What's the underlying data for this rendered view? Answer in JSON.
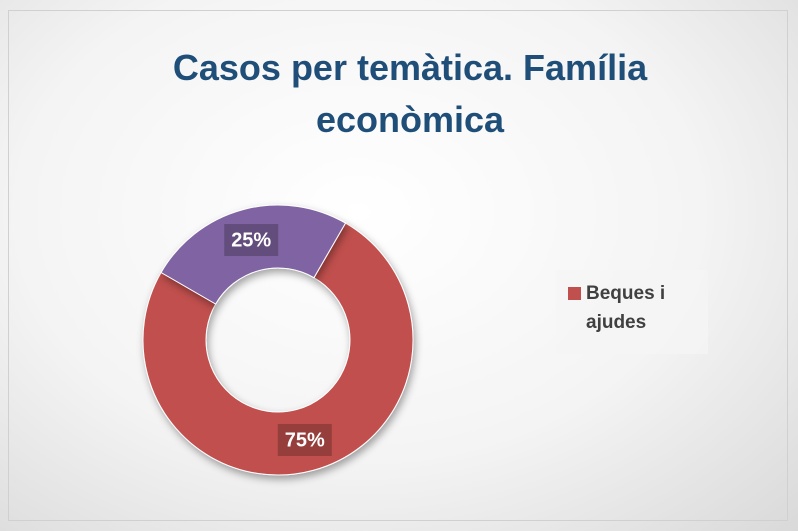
{
  "chart_data": {
    "type": "donut",
    "title": "Casos per temàtica. Família econòmica",
    "categories": [
      "Beques i ajudes",
      null
    ],
    "values": [
      75,
      25
    ],
    "value_labels": [
      "75%",
      "25%"
    ],
    "colors": [
      "#c0504d",
      "#8064a2"
    ],
    "legend": "right"
  }
}
